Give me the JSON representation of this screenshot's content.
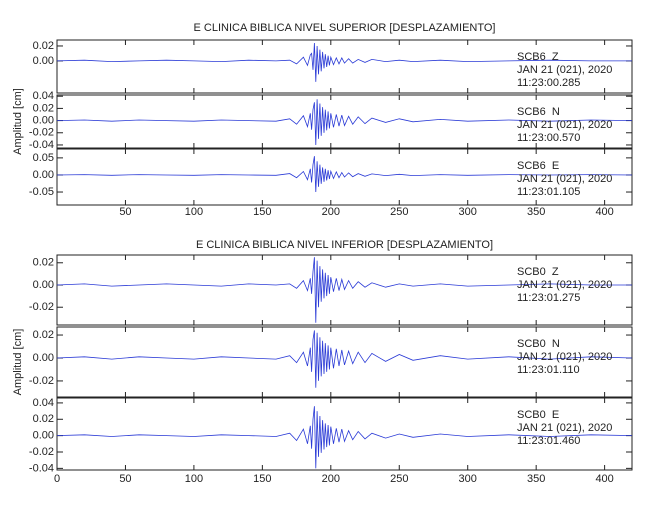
{
  "chart_data": [
    {
      "type": "line",
      "title": "E CLINICA BIBLICA NIVEL SUPERIOR [DESPLAZAMIENTO]",
      "ylabel": "Amplitud [cm]",
      "xlim": [
        0,
        420
      ],
      "xticks": [
        50,
        100,
        150,
        200,
        250,
        300,
        350,
        400
      ],
      "x": [
        0,
        20,
        40,
        60,
        80,
        100,
        120,
        140,
        160,
        170,
        175,
        180,
        183,
        185,
        186,
        187,
        188,
        189,
        190,
        191,
        192,
        193,
        194,
        195,
        196,
        197,
        198,
        199,
        200,
        202,
        204,
        206,
        208,
        210,
        213,
        216,
        220,
        225,
        230,
        240,
        250,
        260,
        280,
        300,
        330,
        360,
        390,
        420
      ],
      "panels": [
        {
          "station": "SCB6  Z",
          "date": "JAN 21 (021), 2020",
          "time": "11:23:00.285",
          "color": "#2a3ad6",
          "ylim": [
            -0.043,
            0.028
          ],
          "yticks": [
            0.02,
            {
              "value": 0,
              "label": "0.00"
            }
          ],
          "values": [
            0,
            0.001,
            -0.001,
            0,
            0.001,
            0,
            -0.001,
            0.001,
            0,
            0.001,
            -0.004,
            0.005,
            -0.006,
            0.008,
            0.01,
            -0.012,
            0.024,
            -0.028,
            0.02,
            -0.018,
            0.015,
            -0.014,
            0.012,
            -0.01,
            0.009,
            -0.008,
            0.007,
            -0.006,
            0.005,
            -0.005,
            0.004,
            -0.004,
            0.004,
            -0.003,
            0.003,
            -0.003,
            0.002,
            -0.002,
            0.002,
            -0.001,
            0.001,
            -0.001,
            0.001,
            -0.001,
            0,
            0.001,
            0,
            0
          ]
        },
        {
          "station": "SCB6  N",
          "date": "JAN 21 (021), 2020",
          "time": "11:23:00.570",
          "color": "#2a3ad6",
          "ylim": [
            -0.045,
            0.042
          ],
          "yticks": [
            0.04,
            0.02,
            {
              "value": 0,
              "label": "0.00"
            },
            -0.02,
            -0.04
          ],
          "values": [
            0,
            0.001,
            -0.001,
            0.001,
            0,
            -0.001,
            0.001,
            0,
            -0.001,
            0.003,
            -0.006,
            0.008,
            -0.01,
            0.012,
            -0.015,
            0.018,
            0.03,
            -0.04,
            0.035,
            -0.03,
            0.028,
            -0.025,
            0.022,
            -0.02,
            0.018,
            -0.016,
            0.015,
            -0.013,
            0.012,
            -0.011,
            0.01,
            -0.009,
            0.009,
            -0.008,
            0.007,
            -0.006,
            0.006,
            -0.005,
            0.004,
            -0.003,
            0.003,
            -0.002,
            0.002,
            -0.001,
            0.001,
            -0.001,
            0.001,
            0
          ]
        },
        {
          "station": "SCB6  E",
          "date": "JAN 21 (021), 2020",
          "time": "11:23:01.105",
          "color": "#2a3ad6",
          "ylim": [
            -0.088,
            0.076
          ],
          "yticks": [
            0.05,
            {
              "value": 0,
              "label": "0.00"
            },
            -0.05
          ],
          "values": [
            0,
            0.001,
            -0.001,
            0.001,
            0,
            -0.001,
            0.001,
            0,
            -0.001,
            0.004,
            -0.008,
            0.01,
            -0.014,
            0.018,
            -0.022,
            0.03,
            0.055,
            -0.05,
            0.04,
            -0.035,
            0.03,
            -0.026,
            0.022,
            -0.02,
            0.018,
            -0.016,
            0.014,
            -0.012,
            0.011,
            -0.01,
            0.009,
            -0.008,
            0.007,
            -0.006,
            0.006,
            -0.005,
            0.004,
            -0.004,
            0.003,
            -0.002,
            0.002,
            -0.002,
            0.001,
            -0.001,
            0.001,
            0,
            0.001,
            0
          ]
        }
      ]
    },
    {
      "type": "line",
      "title": "E CLINICA BIBLICA NIVEL INFERIOR [DESPLAZAMIENTO]",
      "ylabel": "Amplitud [cm]",
      "xlim": [
        0,
        420
      ],
      "xticks": [
        0,
        50,
        100,
        150,
        200,
        250,
        300,
        350,
        400
      ],
      "x": [
        0,
        20,
        40,
        60,
        80,
        100,
        120,
        140,
        160,
        170,
        175,
        180,
        183,
        185,
        186,
        187,
        188,
        189,
        190,
        191,
        192,
        193,
        194,
        195,
        196,
        197,
        198,
        199,
        200,
        202,
        204,
        206,
        208,
        210,
        213,
        216,
        220,
        225,
        230,
        240,
        250,
        260,
        280,
        300,
        330,
        360,
        390,
        420
      ],
      "panels": [
        {
          "station": "SCB0  Z",
          "date": "JAN 21 (021), 2020",
          "time": "11:23:01.275",
          "color": "#2a3ad6",
          "ylim": [
            -0.036,
            0.027
          ],
          "yticks": [
            0.02,
            {
              "value": 0,
              "label": "0.00"
            },
            -0.02
          ],
          "values": [
            0,
            0.001,
            -0.001,
            0,
            0.001,
            0,
            -0.001,
            0.001,
            0,
            0.001,
            -0.003,
            0.004,
            -0.005,
            0.006,
            -0.008,
            0.012,
            0.025,
            -0.034,
            0.022,
            -0.02,
            0.017,
            -0.015,
            0.014,
            -0.012,
            0.011,
            -0.01,
            0.009,
            -0.008,
            0.007,
            -0.006,
            0.006,
            -0.005,
            0.005,
            -0.004,
            0.004,
            -0.003,
            0.003,
            -0.002,
            0.002,
            -0.002,
            0.001,
            -0.001,
            0.001,
            -0.001,
            0,
            0.001,
            0,
            0
          ]
        },
        {
          "station": "SCB0  N",
          "date": "JAN 21 (021), 2020",
          "time": "11:23:01.110",
          "color": "#2a3ad6",
          "ylim": [
            -0.034,
            0.027
          ],
          "yticks": [
            0.02,
            {
              "value": 0,
              "label": "0.00"
            },
            -0.02
          ],
          "values": [
            0,
            0.001,
            -0.001,
            0.001,
            0,
            -0.001,
            0.001,
            0,
            -0.001,
            0.002,
            -0.004,
            0.005,
            -0.007,
            0.009,
            -0.012,
            0.016,
            0.024,
            -0.026,
            0.022,
            -0.02,
            0.018,
            -0.016,
            0.015,
            -0.014,
            0.013,
            -0.012,
            0.011,
            -0.01,
            0.009,
            -0.009,
            0.008,
            -0.007,
            0.007,
            -0.006,
            0.006,
            -0.005,
            0.005,
            -0.004,
            0.004,
            -0.003,
            0.003,
            -0.002,
            0.002,
            -0.001,
            0.001,
            -0.001,
            0.001,
            0
          ]
        },
        {
          "station": "SCB0  E",
          "date": "JAN 21 (021), 2020",
          "time": "11:23:01.460",
          "color": "#2a3ad6",
          "ylim": [
            -0.042,
            0.046
          ],
          "yticks": [
            0.04,
            0.02,
            {
              "value": 0,
              "label": "0.00"
            },
            -0.02,
            -0.04
          ],
          "values": [
            0,
            0.001,
            -0.001,
            0.001,
            0,
            -0.001,
            0.001,
            0,
            -0.001,
            0.003,
            -0.006,
            0.008,
            -0.01,
            0.012,
            -0.016,
            0.02,
            0.036,
            -0.04,
            0.03,
            -0.026,
            0.024,
            -0.021,
            0.019,
            -0.017,
            0.015,
            -0.014,
            0.013,
            -0.012,
            0.011,
            -0.01,
            0.009,
            -0.008,
            0.008,
            -0.007,
            0.006,
            -0.005,
            0.005,
            -0.004,
            0.003,
            -0.003,
            0.002,
            -0.002,
            0.002,
            -0.001,
            0.001,
            -0.001,
            0.001,
            0
          ]
        }
      ]
    }
  ]
}
